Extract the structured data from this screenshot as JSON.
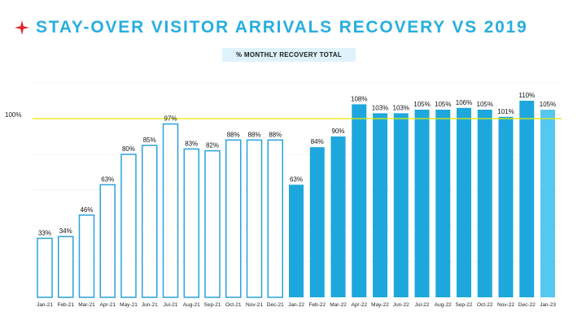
{
  "title": "STAY-OVER VISITOR ARRIVALS RECOVERY VS 2019",
  "subtitle": "% MONTHLY RECOVERY TOTAL",
  "colors": {
    "accent": "#27aee0",
    "outline": "#29a3dc",
    "solid": "#1ea7dc",
    "last": "#56c7f0",
    "reference": "#e8e800",
    "star": "#e0262b"
  },
  "chart_data": {
    "type": "bar",
    "title": "STAY-OVER VISITOR ARRIVALS RECOVERY VS 2019",
    "subtitle": "% MONTHLY RECOVERY TOTAL",
    "xlabel": "",
    "ylabel": "",
    "ylim": [
      0,
      120
    ],
    "grid": true,
    "reference_line": {
      "value": 100,
      "label": "100%"
    },
    "categories": [
      "Jan-21",
      "Feb-21",
      "Mar-21",
      "Apr-21",
      "May-21",
      "Jun-21",
      "Jul-21",
      "Aug-21",
      "Sep-21",
      "Oct-21",
      "Nov-21",
      "Dec-21",
      "Jan-22",
      "Feb-22",
      "Mar-22",
      "Apr-22",
      "May-22",
      "Jun-22",
      "Jul-22",
      "Aug-22",
      "Sep-22",
      "Oct-22",
      "Nov-22",
      "Dec-22",
      "Jan-23"
    ],
    "values": [
      33,
      34,
      46,
      63,
      80,
      85,
      97,
      83,
      82,
      88,
      88,
      88,
      63,
      84,
      90,
      108,
      103,
      103,
      105,
      105,
      106,
      105,
      101,
      110,
      105
    ],
    "labels": [
      "33%",
      "34%",
      "46%",
      "63%",
      "80%",
      "85%",
      "97%",
      "83%",
      "82%",
      "88%",
      "88%",
      "88%",
      "63%",
      "84%",
      "90%",
      "108%",
      "103%",
      "103%",
      "105%",
      "105%",
      "106%",
      "105%",
      "101%",
      "110%",
      "105%"
    ],
    "styles": [
      "outline",
      "outline",
      "outline",
      "outline",
      "outline",
      "outline",
      "outline",
      "outline",
      "outline",
      "outline",
      "outline",
      "outline",
      "solid",
      "solid",
      "solid",
      "solid",
      "solid",
      "solid",
      "solid",
      "solid",
      "solid",
      "solid",
      "solid",
      "solid",
      "last"
    ]
  }
}
